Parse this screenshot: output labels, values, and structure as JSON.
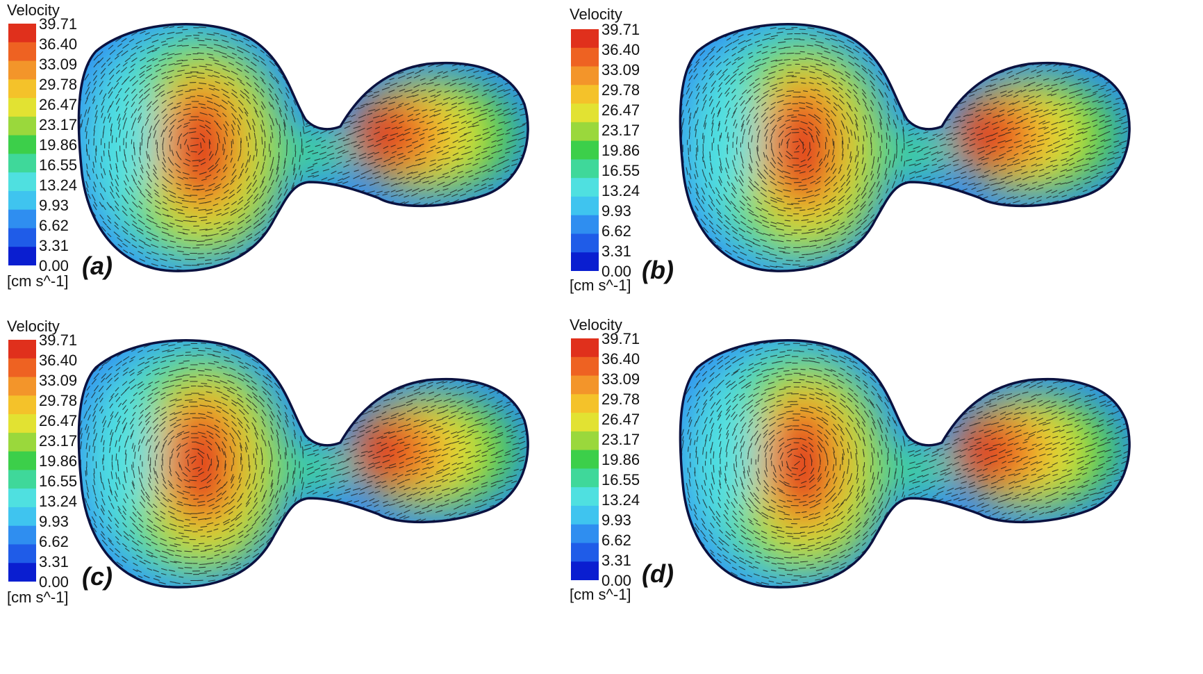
{
  "colors": {
    "scale": [
      "#0a1ed0",
      "#1f5ce8",
      "#2f8ef0",
      "#3fc4ef",
      "#4fe0e0",
      "#3fd89a",
      "#3ccf4a",
      "#9ad83c",
      "#e2e232",
      "#f4c22a",
      "#f3952a",
      "#ee6222",
      "#e0301c"
    ],
    "outline": "#0b1240",
    "vector": "#1a1a1a"
  },
  "legend": {
    "title": "Velocity",
    "unit": "[cm s^-1]",
    "ticks": [
      "39.71",
      "36.40",
      "33.09",
      "29.78",
      "26.47",
      "23.17",
      "19.86",
      "16.55",
      "13.24",
      "9.93",
      "6.62",
      "3.31",
      "0.00"
    ]
  },
  "panels": [
    {
      "label": "(a)"
    },
    {
      "label": "(b)"
    },
    {
      "label": "(c)"
    },
    {
      "label": "(d)"
    }
  ]
}
